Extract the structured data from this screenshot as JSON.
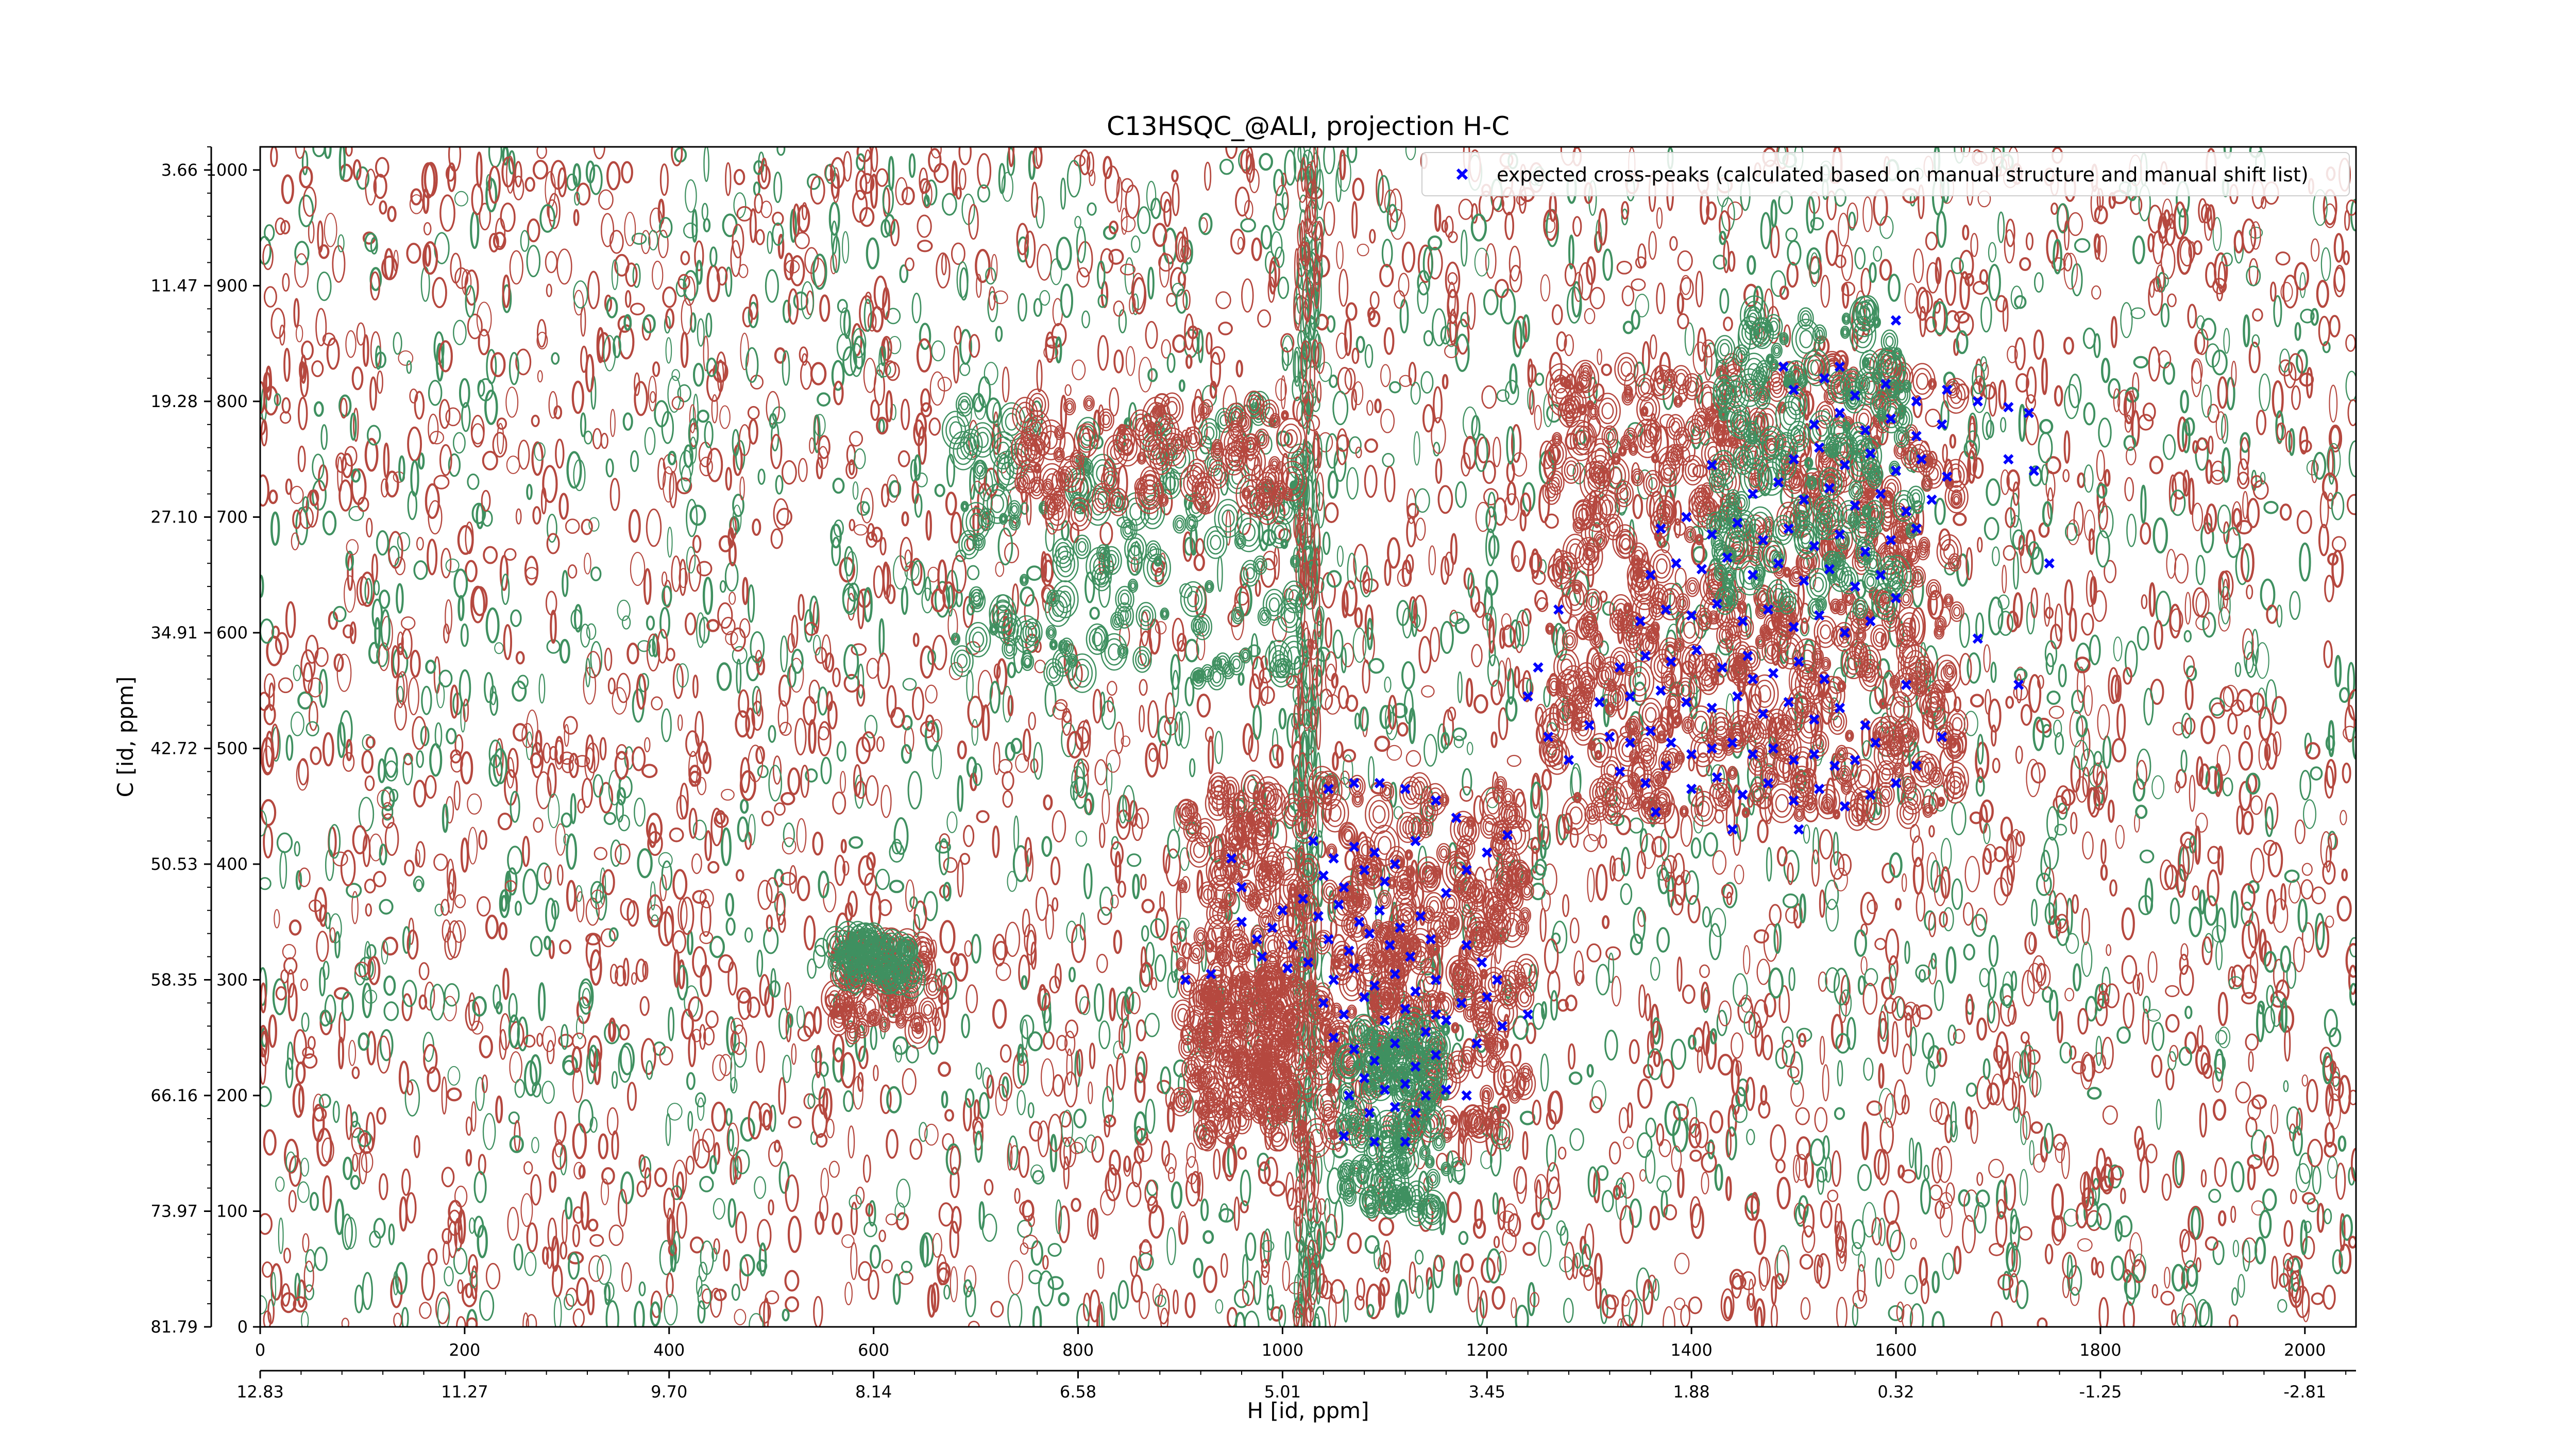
{
  "chart_data": {
    "type": "scatter",
    "subtype": "2D NMR contour spectrum with peak overlay",
    "title": "C13HSQC_@ALI, projection H-C",
    "xlabel": "H [id, ppm]",
    "ylabel": "C [id, ppm]",
    "x_index_range": [
      0,
      2050
    ],
    "y_index_range": [
      0,
      1020
    ],
    "x_index_ticks": [
      0,
      200,
      400,
      600,
      800,
      1000,
      1200,
      1400,
      1600,
      1800,
      2000
    ],
    "x_ppm_ticks": [
      "12.83",
      "11.27",
      "9.70",
      "8.14",
      "6.58",
      "5.01",
      "3.45",
      "1.88",
      "0.32",
      "-1.25",
      "-2.81"
    ],
    "x_ppm_tick_index": [
      0,
      200,
      400,
      600,
      800,
      1000,
      1200,
      1400,
      1600,
      1800,
      2000
    ],
    "y_index_ticks": [
      0,
      100,
      200,
      300,
      400,
      500,
      600,
      700,
      800,
      900,
      1000
    ],
    "y_ppm_ticks": [
      "81.79",
      "73.97",
      "66.16",
      "58.35",
      "50.53",
      "42.72",
      "34.91",
      "27.10",
      "19.28",
      "11.47",
      "3.66"
    ],
    "y_ppm_tick_index": [
      0,
      100,
      200,
      300,
      400,
      500,
      600,
      700,
      800,
      900,
      1000
    ],
    "grid": false,
    "legend_position": "top-right",
    "contour_colors": {
      "positive": "#b5483f",
      "negative": "#3f9060"
    },
    "series": [
      {
        "name": "expected cross-peaks (calculated based on manual structure and manual shift list)",
        "color": "#0000ff",
        "marker": "x",
        "points": [
          [
            1030,
            420
          ],
          [
            1050,
            405
          ],
          [
            1070,
            415
          ],
          [
            1090,
            410
          ],
          [
            1110,
            400
          ],
          [
            1130,
            420
          ],
          [
            1040,
            390
          ],
          [
            1060,
            380
          ],
          [
            1080,
            395
          ],
          [
            1100,
            385
          ],
          [
            1020,
            370
          ],
          [
            1000,
            360
          ],
          [
            1035,
            355
          ],
          [
            1055,
            365
          ],
          [
            1075,
            350
          ],
          [
            1095,
            360
          ],
          [
            1115,
            345
          ],
          [
            1135,
            355
          ],
          [
            1045,
            335
          ],
          [
            1065,
            325
          ],
          [
            1085,
            340
          ],
          [
            1105,
            330
          ],
          [
            1125,
            320
          ],
          [
            1145,
            335
          ],
          [
            990,
            345
          ],
          [
            975,
            335
          ],
          [
            960,
            350
          ],
          [
            1010,
            330
          ],
          [
            1025,
            315
          ],
          [
            1050,
            300
          ],
          [
            1070,
            310
          ],
          [
            1090,
            295
          ],
          [
            1110,
            305
          ],
          [
            1130,
            290
          ],
          [
            1150,
            300
          ],
          [
            1040,
            280
          ],
          [
            1060,
            270
          ],
          [
            1080,
            285
          ],
          [
            1100,
            265
          ],
          [
            1120,
            275
          ],
          [
            1140,
            255
          ],
          [
            1160,
            265
          ],
          [
            1050,
            250
          ],
          [
            1070,
            240
          ],
          [
            1090,
            230
          ],
          [
            1110,
            245
          ],
          [
            1130,
            225
          ],
          [
            1150,
            235
          ],
          [
            1080,
            215
          ],
          [
            1100,
            205
          ],
          [
            1120,
            210
          ],
          [
            1140,
            200
          ],
          [
            1160,
            205
          ],
          [
            1180,
            200
          ],
          [
            1065,
            200
          ],
          [
            1085,
            185
          ],
          [
            1110,
            190
          ],
          [
            1130,
            185
          ],
          [
            1060,
            165
          ],
          [
            1090,
            160
          ],
          [
            1120,
            160
          ],
          [
            1150,
            270
          ],
          [
            1175,
            280
          ],
          [
            1200,
            285
          ],
          [
            1160,
            375
          ],
          [
            1180,
            395
          ],
          [
            1200,
            410
          ],
          [
            1220,
            425
          ],
          [
            1170,
            440
          ],
          [
            1150,
            455
          ],
          [
            1120,
            465
          ],
          [
            1095,
            470
          ],
          [
            1070,
            470
          ],
          [
            1045,
            465
          ],
          [
            950,
            405
          ],
          [
            960,
            380
          ],
          [
            980,
            320
          ],
          [
            905,
            300
          ],
          [
            930,
            305
          ],
          [
            1005,
            310
          ],
          [
            1180,
            330
          ],
          [
            1195,
            315
          ],
          [
            1210,
            300
          ],
          [
            1240,
            270
          ],
          [
            1215,
            260
          ],
          [
            1190,
            245
          ],
          [
            1300,
            520
          ],
          [
            1320,
            510
          ],
          [
            1340,
            505
          ],
          [
            1360,
            515
          ],
          [
            1380,
            505
          ],
          [
            1400,
            495
          ],
          [
            1420,
            500
          ],
          [
            1440,
            505
          ],
          [
            1460,
            495
          ],
          [
            1480,
            500
          ],
          [
            1500,
            490
          ],
          [
            1520,
            495
          ],
          [
            1540,
            485
          ],
          [
            1560,
            490
          ],
          [
            1580,
            505
          ],
          [
            1330,
            480
          ],
          [
            1355,
            470
          ],
          [
            1375,
            485
          ],
          [
            1400,
            465
          ],
          [
            1425,
            475
          ],
          [
            1450,
            460
          ],
          [
            1475,
            470
          ],
          [
            1500,
            455
          ],
          [
            1525,
            465
          ],
          [
            1550,
            450
          ],
          [
            1575,
            460
          ],
          [
            1600,
            470
          ],
          [
            1310,
            540
          ],
          [
            1340,
            545
          ],
          [
            1370,
            550
          ],
          [
            1395,
            540
          ],
          [
            1420,
            535
          ],
          [
            1445,
            545
          ],
          [
            1470,
            530
          ],
          [
            1495,
            540
          ],
          [
            1520,
            525
          ],
          [
            1545,
            535
          ],
          [
            1570,
            520
          ],
          [
            1330,
            570
          ],
          [
            1355,
            580
          ],
          [
            1380,
            575
          ],
          [
            1405,
            585
          ],
          [
            1430,
            570
          ],
          [
            1455,
            580
          ],
          [
            1480,
            565
          ],
          [
            1505,
            575
          ],
          [
            1530,
            560
          ],
          [
            1350,
            610
          ],
          [
            1375,
            620
          ],
          [
            1400,
            615
          ],
          [
            1425,
            625
          ],
          [
            1450,
            610
          ],
          [
            1475,
            620
          ],
          [
            1500,
            605
          ],
          [
            1525,
            615
          ],
          [
            1550,
            600
          ],
          [
            1575,
            610
          ],
          [
            1360,
            650
          ],
          [
            1385,
            660
          ],
          [
            1410,
            655
          ],
          [
            1435,
            665
          ],
          [
            1460,
            650
          ],
          [
            1485,
            660
          ],
          [
            1510,
            645
          ],
          [
            1535,
            655
          ],
          [
            1560,
            640
          ],
          [
            1585,
            650
          ],
          [
            1370,
            690
          ],
          [
            1395,
            700
          ],
          [
            1420,
            685
          ],
          [
            1445,
            695
          ],
          [
            1470,
            680
          ],
          [
            1495,
            690
          ],
          [
            1520,
            675
          ],
          [
            1545,
            685
          ],
          [
            1570,
            670
          ],
          [
            1595,
            680
          ],
          [
            1620,
            690
          ],
          [
            1460,
            720
          ],
          [
            1485,
            730
          ],
          [
            1510,
            715
          ],
          [
            1535,
            725
          ],
          [
            1560,
            710
          ],
          [
            1585,
            720
          ],
          [
            1610,
            705
          ],
          [
            1635,
            715
          ],
          [
            1500,
            750
          ],
          [
            1525,
            760
          ],
          [
            1550,
            745
          ],
          [
            1575,
            755
          ],
          [
            1600,
            740
          ],
          [
            1625,
            750
          ],
          [
            1650,
            735
          ],
          [
            1520,
            780
          ],
          [
            1545,
            790
          ],
          [
            1570,
            775
          ],
          [
            1595,
            785
          ],
          [
            1620,
            770
          ],
          [
            1645,
            780
          ],
          [
            1500,
            810
          ],
          [
            1530,
            820
          ],
          [
            1560,
            805
          ],
          [
            1590,
            815
          ],
          [
            1620,
            800
          ],
          [
            1650,
            810
          ],
          [
            1680,
            800
          ],
          [
            1710,
            795
          ],
          [
            1730,
            790
          ],
          [
            1710,
            750
          ],
          [
            1735,
            740
          ],
          [
            1750,
            660
          ],
          [
            1270,
            620
          ],
          [
            1250,
            570
          ],
          [
            1240,
            545
          ],
          [
            1260,
            510
          ],
          [
            1280,
            490
          ],
          [
            1420,
            745
          ],
          [
            1460,
            560
          ],
          [
            1505,
            430
          ],
          [
            1440,
            430
          ],
          [
            1365,
            445
          ],
          [
            1610,
            555
          ],
          [
            1645,
            510
          ],
          [
            1620,
            485
          ],
          [
            1600,
            630
          ],
          [
            1680,
            595
          ],
          [
            1720,
            555
          ],
          [
            1545,
            830
          ],
          [
            1490,
            830
          ],
          [
            1600,
            870
          ]
        ]
      }
    ]
  }
}
